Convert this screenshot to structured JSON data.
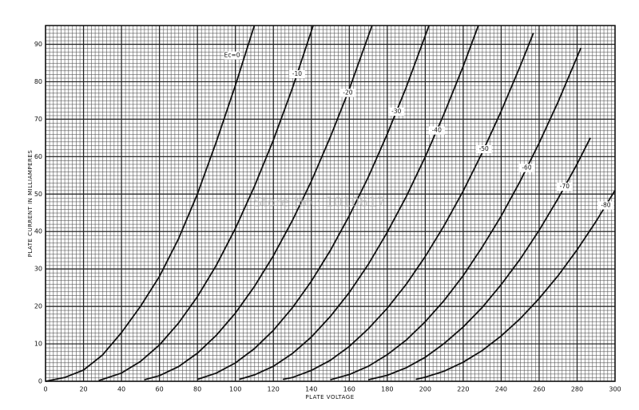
{
  "chart_data": {
    "type": "line",
    "x_label": "PLATE VOLTAGE",
    "y_label": "PLATE CURRENT IN MILLIAMPERES",
    "watermark": "Store No.: 1010617",
    "xlim": [
      0,
      300
    ],
    "ylim": [
      0,
      95
    ],
    "xticks": [
      0,
      20,
      40,
      60,
      80,
      100,
      120,
      140,
      160,
      180,
      200,
      220,
      240,
      260,
      280,
      300
    ],
    "yticks": [
      0,
      10,
      20,
      30,
      40,
      50,
      60,
      70,
      80,
      90
    ],
    "grid": true,
    "color": "#111",
    "series": [
      {
        "name": "Ec=0",
        "x": [
          0,
          10,
          20,
          30,
          40,
          50,
          60,
          70,
          80,
          90,
          100,
          110
        ],
        "values": [
          0,
          1,
          3,
          7,
          13,
          20,
          28,
          38,
          50,
          64,
          79,
          95
        ]
      },
      {
        "name": "-10",
        "x": [
          28,
          30,
          40,
          50,
          60,
          70,
          80,
          90,
          100,
          110,
          120,
          130,
          141
        ],
        "values": [
          0.2,
          0.5,
          2.2,
          5.3,
          9.7,
          15.5,
          22.6,
          31,
          40.8,
          52,
          64.4,
          78.2,
          95
        ]
      },
      {
        "name": "-20",
        "x": [
          52,
          60,
          70,
          80,
          90,
          100,
          110,
          120,
          130,
          140,
          150,
          160,
          172
        ],
        "values": [
          0.4,
          1.5,
          3.9,
          7.5,
          12.3,
          18.2,
          25.3,
          33.5,
          42.9,
          53.4,
          65.2,
          78,
          95
        ]
      },
      {
        "name": "-30",
        "x": [
          80,
          90,
          100,
          110,
          120,
          130,
          140,
          150,
          160,
          170,
          180,
          190,
          202
        ],
        "values": [
          0.5,
          2.2,
          4.9,
          8.7,
          13.6,
          19.6,
          26.7,
          34.9,
          44.2,
          54.5,
          66,
          78.5,
          95
        ]
      },
      {
        "name": "-40",
        "x": [
          102,
          110,
          120,
          130,
          140,
          150,
          160,
          170,
          180,
          190,
          200,
          210,
          220,
          228
        ],
        "values": [
          0.5,
          1.7,
          4,
          7.4,
          11.8,
          17.3,
          23.7,
          31.2,
          39.8,
          49.3,
          59.9,
          71.5,
          84.1,
          95
        ]
      },
      {
        "name": "-50",
        "x": [
          125,
          130,
          140,
          150,
          160,
          170,
          180,
          190,
          200,
          210,
          220,
          230,
          240,
          250,
          257
        ],
        "values": [
          0.5,
          1,
          2.9,
          5.6,
          9.3,
          14,
          19.5,
          25.9,
          33.3,
          41.6,
          50.8,
          61,
          72.1,
          84.1,
          93
        ]
      },
      {
        "name": "-60",
        "x": [
          150,
          160,
          170,
          180,
          190,
          200,
          210,
          220,
          230,
          240,
          250,
          260,
          270,
          282
        ],
        "values": [
          0.4,
          1.8,
          4,
          7.1,
          11,
          15.9,
          21.6,
          28.2,
          35.8,
          44.1,
          53.4,
          63.6,
          74.6,
          89
        ]
      },
      {
        "name": "-70",
        "x": [
          170,
          180,
          190,
          200,
          210,
          220,
          230,
          240,
          250,
          260,
          270,
          280,
          287
        ],
        "values": [
          0.4,
          1.6,
          3.6,
          6.4,
          10.1,
          14.5,
          19.7,
          25.8,
          32.6,
          40.3,
          48.8,
          58,
          65
        ]
      },
      {
        "name": "-80",
        "x": [
          195,
          200,
          210,
          220,
          230,
          240,
          250,
          260,
          270,
          280,
          290,
          300
        ],
        "values": [
          0.5,
          1.1,
          2.7,
          5.1,
          8.2,
          12.1,
          16.7,
          22.1,
          28.2,
          35.1,
          42.7,
          51
        ]
      }
    ]
  }
}
